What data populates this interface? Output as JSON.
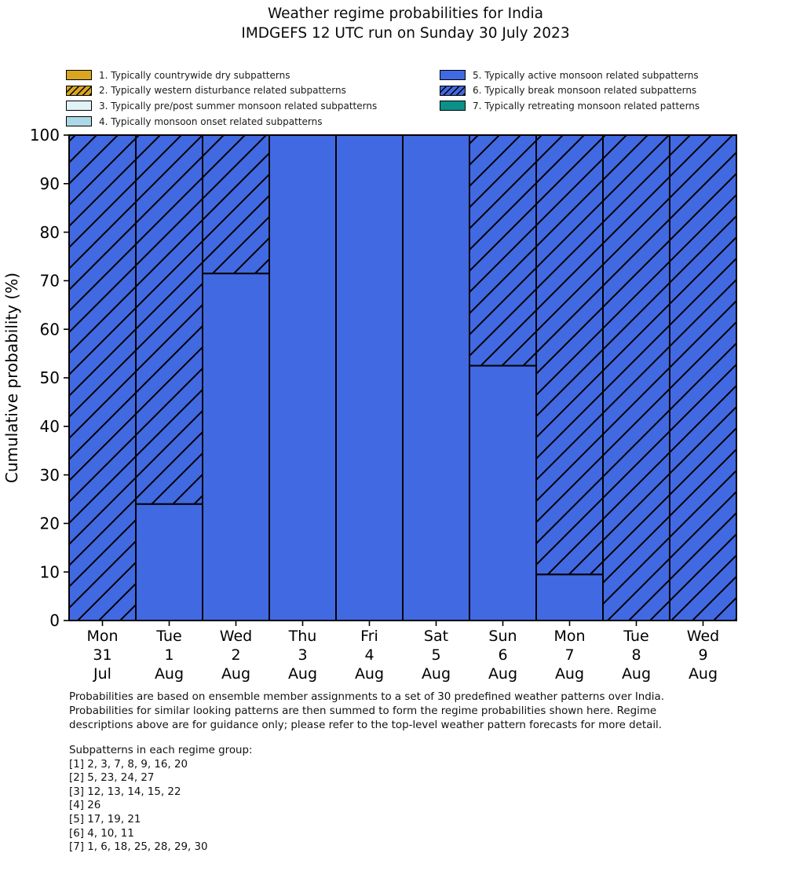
{
  "title": {
    "line1": "Weather regime probabilities for India",
    "line2": "IMDGEFS 12 UTC run on Sunday 30 July 2023"
  },
  "legend": {
    "left": [
      {
        "label": "1. Typically countrywide dry subpatterns",
        "color": "#DAA520",
        "hatched": false
      },
      {
        "label": "2. Typically western disturbance related subpatterns",
        "color": "#DAA520",
        "hatched": true
      },
      {
        "label": "3. Typically pre/post summer monsoon related subpatterns",
        "color": "#E0F3F8",
        "hatched": false
      },
      {
        "label": "4. Typically monsoon onset related subpatterns",
        "color": "#ADD8E6",
        "hatched": false
      }
    ],
    "right": [
      {
        "label": "5. Typically active monsoon related subpatterns",
        "color": "#4169E1",
        "hatched": false
      },
      {
        "label": "6. Typically break monsoon related subpatterns",
        "color": "#4169E1",
        "hatched": true
      },
      {
        "label": "7. Typically retreating monsoon related patterns",
        "color": "#0A9189",
        "hatched": false
      }
    ]
  },
  "chart_data": {
    "type": "bar",
    "stacked": true,
    "title": "Weather regime probabilities for India — IMDGEFS 12 UTC run on Sunday 30 July 2023",
    "categories_day": [
      "Mon",
      "Tue",
      "Wed",
      "Thu",
      "Fri",
      "Sat",
      "Sun",
      "Mon",
      "Tue",
      "Wed"
    ],
    "categories_date": [
      "31",
      "1",
      "2",
      "3",
      "4",
      "5",
      "6",
      "7",
      "8",
      "9"
    ],
    "categories_month": [
      "Jul",
      "Aug",
      "Aug",
      "Aug",
      "Aug",
      "Aug",
      "Aug",
      "Aug",
      "Aug",
      "Aug"
    ],
    "series": [
      {
        "name": "5. Typically active monsoon related subpatterns",
        "values": [
          0,
          24,
          71.5,
          100,
          100,
          100,
          52.5,
          9.5,
          0,
          0
        ],
        "color": "#4169E1",
        "hatched": false
      },
      {
        "name": "6. Typically break monsoon related subpatterns",
        "values": [
          100,
          76,
          28.5,
          0,
          0,
          0,
          47.5,
          90.5,
          100,
          100
        ],
        "color": "#4169E1",
        "hatched": true
      }
    ],
    "xlabel": "",
    "ylabel": "Cumulative probability (%)",
    "ylim": [
      0,
      100
    ],
    "yticks": [
      0,
      10,
      20,
      30,
      40,
      50,
      60,
      70,
      80,
      90,
      100
    ],
    "grid": false,
    "legend_position": "top",
    "bar_edge_color": "#000000"
  },
  "footer": {
    "lines": [
      "Probabilities are based on ensemble member assignments to a set of 30 predefined weather patterns over India.",
      "Probabilities for similar looking patterns are then summed to form the regime probabilities shown here. Regime",
      "descriptions above are for guidance only; please refer to the top-level weather pattern forecasts for more detail."
    ]
  },
  "subpatterns": {
    "heading": "Subpatterns in each regime group:",
    "groups": [
      "[1] 2, 3, 7, 8, 9, 16, 20",
      "[2] 5, 23, 24, 27",
      "[3] 12, 13, 14, 15, 22",
      "[4] 26",
      "[5] 17, 19, 21",
      "[6] 4, 10, 11",
      "[7] 1, 6, 18, 25, 28, 29, 30"
    ]
  }
}
